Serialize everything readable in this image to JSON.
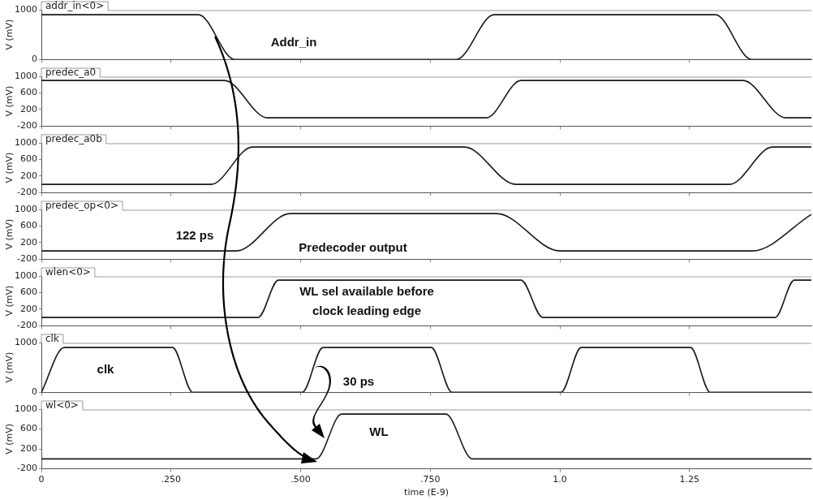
{
  "chart_data": [
    {
      "type": "line",
      "marker": "none",
      "xlim": [
        0,
        1.485
      ],
      "xticks": [
        0,
        0.25,
        0.5,
        0.75,
        1,
        1.25
      ],
      "ylim": [
        0,
        1000
      ],
      "yticks": [
        0,
        1000
      ],
      "ylabel": "V (mV)",
      "tick_labels": "y",
      "annotations": [
        "Addr_in"
      ],
      "series": [
        {
          "name": "addr_in<0>",
          "color": "#1a1a1a",
          "x": [
            0,
            0.303,
            0.373,
            0.8,
            0.873,
            1.3,
            1.37,
            1.485
          ],
          "values": [
            900,
            900,
            0,
            0,
            900,
            900,
            0,
            0
          ]
        }
      ]
    },
    {
      "type": "line",
      "marker": "none",
      "xlim": [
        0,
        1.485
      ],
      "xticks": [
        0,
        0.25,
        0.5,
        0.75,
        1,
        1.25
      ],
      "ylim": [
        -200,
        1000
      ],
      "yticks": [
        -200,
        200,
        600,
        1000
      ],
      "ylabel": "V (mV)",
      "tick_labels": "y",
      "series": [
        {
          "name": "predec_a0",
          "color": "#1a1a1a",
          "x": [
            0,
            0.353,
            0.436,
            0.858,
            0.925,
            1.353,
            1.436,
            1.485
          ],
          "values": [
            900,
            900,
            0,
            0,
            900,
            900,
            0,
            0
          ]
        }
      ]
    },
    {
      "type": "line",
      "marker": "none",
      "xlim": [
        0,
        1.485
      ],
      "xticks": [
        0,
        0.25,
        0.5,
        0.75,
        1,
        1.25
      ],
      "ylim": [
        -200,
        1000
      ],
      "yticks": [
        -200,
        200,
        600,
        1000
      ],
      "ylabel": "V (mV)",
      "tick_labels": "y",
      "series": [
        {
          "name": "predec_a0b",
          "color": "#1a1a1a",
          "x": [
            0,
            0.327,
            0.407,
            0.816,
            0.915,
            1.327,
            1.41,
            1.485
          ],
          "values": [
            0,
            0,
            900,
            900,
            0,
            0,
            900,
            900
          ]
        }
      ]
    },
    {
      "type": "line",
      "marker": "none",
      "xlim": [
        0,
        1.485
      ],
      "xticks": [
        0,
        0.25,
        0.5,
        0.75,
        1,
        1.25
      ],
      "ylim": [
        -200,
        1000
      ],
      "yticks": [
        -200,
        200,
        600,
        1000
      ],
      "ylabel": "V (mV)",
      "tick_labels": "y",
      "annotations": [
        "122 ps",
        "Predecoder output"
      ],
      "series": [
        {
          "name": "predec_op<0>",
          "color": "#1a1a1a",
          "x": [
            0,
            0.376,
            0.48,
            0.878,
            1.0,
            1.371,
            1.485
          ],
          "values": [
            0,
            0,
            900,
            900,
            0,
            0,
            880
          ]
        }
      ]
    },
    {
      "type": "line",
      "marker": "none",
      "xlim": [
        0,
        1.485
      ],
      "xticks": [
        0,
        0.25,
        0.5,
        0.75,
        1,
        1.25
      ],
      "ylim": [
        -200,
        1000
      ],
      "yticks": [
        -200,
        200,
        600,
        1000
      ],
      "ylabel": "V (mV)",
      "tick_labels": "y",
      "annotations": [
        "WL sel available before\nclock leading edge"
      ],
      "series": [
        {
          "name": "wlen<0>",
          "color": "#1a1a1a",
          "x": [
            0,
            0.418,
            0.457,
            0.925,
            0.967,
            1.415,
            1.452,
            1.485
          ],
          "values": [
            0,
            0,
            900,
            900,
            0,
            0,
            900,
            900
          ]
        }
      ]
    },
    {
      "type": "line",
      "marker": "none",
      "xlim": [
        0,
        1.485
      ],
      "xticks": [
        0,
        0.25,
        0.5,
        0.75,
        1,
        1.25
      ],
      "ylim": [
        0,
        1000
      ],
      "yticks": [
        0,
        1000
      ],
      "ylabel": "V (mV)",
      "tick_labels": "y",
      "annotations": [
        "clk",
        "30 ps"
      ],
      "series": [
        {
          "name": "clk",
          "color": "#1a1a1a",
          "x": [
            0,
            0.044,
            0.253,
            0.292,
            0.503,
            0.543,
            0.752,
            0.792,
            1.002,
            1.041,
            1.252,
            1.29,
            1.485
          ],
          "values": [
            0,
            900,
            900,
            0,
            0,
            900,
            900,
            0,
            0,
            900,
            900,
            0,
            0
          ]
        }
      ]
    },
    {
      "type": "line",
      "marker": "none",
      "xlim": [
        0,
        1.485
      ],
      "xticks": [
        0,
        {
          "value": 0.25,
          "label": ".250"
        },
        {
          "value": 0.5,
          "label": ".500"
        },
        {
          "value": 0.75,
          "label": ".750"
        },
        {
          "value": 1,
          "label": "1.0"
        },
        1.25
      ],
      "ylim": [
        -200,
        1000
      ],
      "yticks": [
        -200,
        200,
        600,
        1000
      ],
      "ylabel": "V (mV)",
      "xlabel": "time (E-9)",
      "annotations": [
        "WL"
      ],
      "series": [
        {
          "name": "wl<0>",
          "color": "#1a1a1a",
          "x": [
            0,
            0.53,
            0.579,
            0.78,
            0.831,
            1.485
          ],
          "values": [
            0,
            0,
            900,
            900,
            0,
            0
          ]
        }
      ]
    }
  ]
}
